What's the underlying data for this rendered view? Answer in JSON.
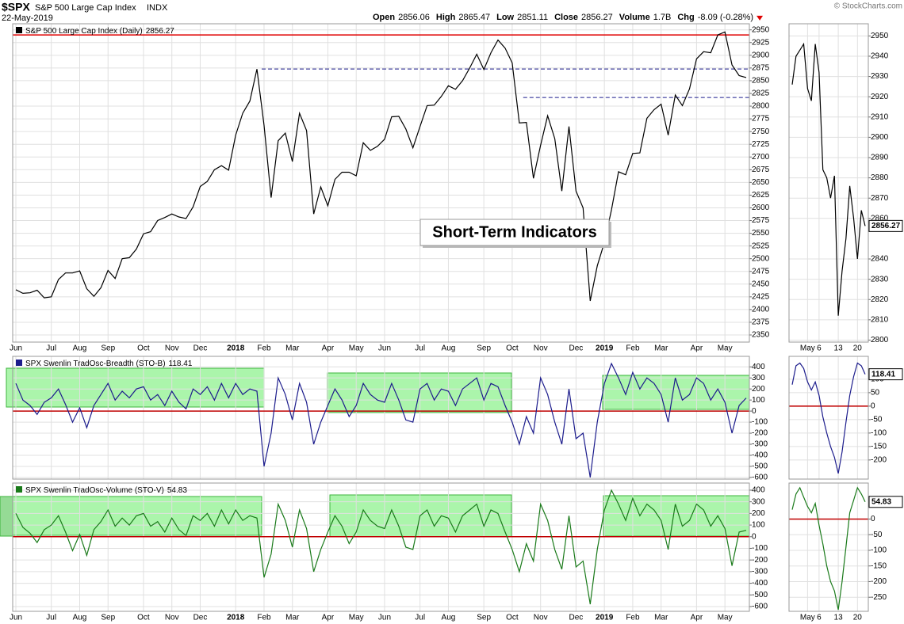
{
  "header": {
    "symbol": "$SPX",
    "name": "S&P 500 Large Cap Index",
    "exchange": "INDX",
    "date": "22-May-2019",
    "credit": "© StockCharts.com",
    "quote": [
      {
        "label": "Open",
        "value": 2856.06
      },
      {
        "label": "High",
        "value": 2865.47
      },
      {
        "label": "Low",
        "value": 2851.11
      },
      {
        "label": "Close",
        "value": 2856.27
      },
      {
        "label": "Volume",
        "value": "1.7B"
      },
      {
        "label": "Chg",
        "value": "-8.09 (-0.28%)"
      }
    ]
  },
  "chart_data": [
    {
      "type": "line",
      "annotation": "Short-Term Indicators",
      "grid": true,
      "categories": [
        "Jun",
        null,
        null,
        null,
        null,
        "Jul",
        null,
        null,
        null,
        "Aug",
        null,
        null,
        null,
        "Sep",
        null,
        null,
        null,
        null,
        "Oct",
        null,
        null,
        null,
        "Nov",
        null,
        null,
        null,
        "Dec",
        null,
        null,
        null,
        null,
        "2018",
        null,
        null,
        null,
        "Feb",
        null,
        null,
        null,
        "Mar",
        null,
        null,
        null,
        null,
        "Apr",
        null,
        null,
        null,
        "May",
        null,
        null,
        null,
        "Jun",
        null,
        null,
        null,
        null,
        "Jul",
        null,
        null,
        null,
        "Aug",
        null,
        null,
        null,
        null,
        "Sep",
        null,
        null,
        null,
        "Oct",
        null,
        null,
        null,
        "Nov",
        null,
        null,
        null,
        null,
        "Dec",
        null,
        null,
        null,
        "2019",
        null,
        null,
        null,
        "Feb",
        null,
        null,
        null,
        "Mar",
        null,
        null,
        null,
        null,
        "Apr",
        null,
        null,
        null,
        "May",
        null,
        null,
        null
      ],
      "series": [
        {
          "name": "S&P 500 Large Cap Index (Daily)",
          "color": "#000000",
          "values": [
            2439,
            2432,
            2433,
            2438,
            2423,
            2425,
            2459,
            2472,
            2472,
            2476,
            2441,
            2426,
            2443,
            2477,
            2461,
            2500,
            2502,
            2519,
            2549,
            2553,
            2575,
            2581,
            2588,
            2582,
            2579,
            2602,
            2642,
            2652,
            2675,
            2683,
            2674,
            2743,
            2786,
            2810,
            2873,
            2762,
            2620,
            2732,
            2747,
            2691,
            2786,
            2752,
            2588,
            2641,
            2604,
            2656,
            2670,
            2670,
            2663,
            2728,
            2713,
            2721,
            2735,
            2779,
            2780,
            2755,
            2718,
            2760,
            2801,
            2802,
            2819,
            2840,
            2833,
            2850,
            2875,
            2902,
            2872,
            2905,
            2930,
            2914,
            2885,
            2767,
            2768,
            2658,
            2723,
            2781,
            2736,
            2633,
            2760,
            2633,
            2600,
            2417,
            2486,
            2532,
            2596,
            2671,
            2665,
            2707,
            2708,
            2776,
            2793,
            2804,
            2743,
            2822,
            2801,
            2834,
            2893,
            2907,
            2905,
            2940,
            2946,
            2881,
            2860,
            2856.27
          ]
        }
      ],
      "ylim": [
        2336,
        2962
      ],
      "yticks": [
        2350,
        2375,
        2400,
        2425,
        2450,
        2475,
        2500,
        2525,
        2550,
        2575,
        2600,
        2625,
        2650,
        2675,
        2700,
        2725,
        2750,
        2775,
        2800,
        2825,
        2850,
        2875,
        2900,
        2925,
        2950
      ],
      "reference_lines": [
        {
          "value": 2940,
          "color": "#e00000",
          "style": "solid"
        },
        {
          "value": 2873,
          "color": "#1c1c8c",
          "style": "dashed"
        },
        {
          "value": 2817,
          "color": "#1c1c8c",
          "style": "dashed"
        }
      ]
    },
    {
      "type": "line",
      "grid": true,
      "series": [
        {
          "name": "SPX Swenlin TradOsc-Breadth (STO-B)",
          "color": "#1c1c8c",
          "values": [
            250,
            100,
            50,
            -30,
            80,
            120,
            200,
            60,
            -100,
            30,
            -150,
            50,
            150,
            250,
            100,
            180,
            120,
            200,
            220,
            100,
            150,
            50,
            180,
            80,
            20,
            200,
            150,
            220,
            100,
            250,
            120,
            250,
            150,
            200,
            180,
            -500,
            -200,
            300,
            150,
            -80,
            250,
            80,
            -300,
            -100,
            50,
            200,
            100,
            -50,
            50,
            250,
            150,
            100,
            80,
            250,
            100,
            -80,
            -100,
            200,
            250,
            100,
            200,
            180,
            50,
            200,
            250,
            300,
            100,
            250,
            220,
            50,
            -100,
            -300,
            -50,
            -200,
            300,
            150,
            -100,
            -300,
            200,
            -250,
            -200,
            -600,
            -100,
            250,
            430,
            300,
            150,
            350,
            200,
            300,
            250,
            150,
            -100,
            300,
            100,
            150,
            300,
            250,
            100,
            200,
            80,
            -200,
            50,
            118.41
          ]
        }
      ],
      "ylim": [
        -615,
        495
      ],
      "yticks": [
        400,
        300,
        200,
        100,
        0,
        -100,
        -200,
        -300,
        -400,
        -500,
        -600
      ],
      "reference_lines": [
        {
          "value": 0,
          "color": "#c00000",
          "style": "solid"
        }
      ]
    },
    {
      "type": "line",
      "grid": true,
      "categories": [
        "Jun",
        null,
        null,
        null,
        null,
        "Jul",
        null,
        null,
        null,
        "Aug",
        null,
        null,
        null,
        "Sep",
        null,
        null,
        null,
        null,
        "Oct",
        null,
        null,
        null,
        "Nov",
        null,
        null,
        null,
        "Dec",
        null,
        null,
        null,
        null,
        "2018",
        null,
        null,
        null,
        "Feb",
        null,
        null,
        null,
        "Mar",
        null,
        null,
        null,
        null,
        "Apr",
        null,
        null,
        null,
        "May",
        null,
        null,
        null,
        "Jun",
        null,
        null,
        null,
        null,
        "Jul",
        null,
        null,
        null,
        "Aug",
        null,
        null,
        null,
        null,
        "Sep",
        null,
        null,
        null,
        "Oct",
        null,
        null,
        null,
        "Nov",
        null,
        null,
        null,
        null,
        "Dec",
        null,
        null,
        null,
        "2019",
        null,
        null,
        null,
        "Feb",
        null,
        null,
        null,
        "Mar",
        null,
        null,
        null,
        null,
        "Apr",
        null,
        null,
        null,
        "May",
        null,
        null,
        null
      ],
      "series": [
        {
          "name": "SPX Swenlin TradOsc-Volume (STO-V)",
          "color": "#1a7a1a",
          "values": [
            200,
            80,
            30,
            -50,
            60,
            100,
            180,
            40,
            -120,
            20,
            -160,
            60,
            130,
            230,
            90,
            160,
            100,
            180,
            200,
            90,
            130,
            40,
            160,
            60,
            10,
            180,
            140,
            200,
            90,
            230,
            110,
            230,
            140,
            180,
            160,
            -350,
            -150,
            280,
            140,
            -90,
            230,
            70,
            -300,
            -110,
            40,
            180,
            90,
            -60,
            40,
            230,
            140,
            90,
            70,
            230,
            90,
            -90,
            -110,
            180,
            230,
            90,
            180,
            160,
            40,
            180,
            230,
            280,
            90,
            230,
            200,
            40,
            -110,
            -300,
            -60,
            -210,
            280,
            140,
            -110,
            -280,
            180,
            -260,
            -210,
            -580,
            -110,
            230,
            400,
            280,
            140,
            330,
            180,
            280,
            230,
            140,
            -110,
            280,
            90,
            140,
            280,
            230,
            90,
            180,
            70,
            -250,
            40,
            54.83
          ]
        }
      ],
      "ylim": [
        -641,
        461
      ],
      "yticks": [
        400,
        300,
        200,
        100,
        0,
        -100,
        -200,
        -300,
        -400,
        -500,
        -600
      ],
      "reference_lines": [
        {
          "value": 0,
          "color": "#c00000",
          "style": "solid"
        }
      ]
    },
    {
      "type": "line",
      "grid": true,
      "categories": [
        null,
        null,
        null,
        null,
        "May",
        null,
        null,
        "6",
        null,
        null,
        null,
        null,
        "13",
        null,
        null,
        null,
        null,
        "20",
        null,
        null
      ],
      "series": [
        {
          "color": "#000000",
          "values": [
            2926,
            2940,
            2943,
            2946,
            2924,
            2918,
            2946,
            2932,
            2884,
            2880,
            2870,
            2881,
            2812,
            2834,
            2850,
            2876,
            2860,
            2840,
            2864,
            2856.27
          ]
        }
      ],
      "ylim": [
        2799,
        2956
      ],
      "yticks": [
        2800,
        2810,
        2820,
        2830,
        2840,
        2860,
        2870,
        2880,
        2890,
        2900,
        2910,
        2920,
        2930,
        2940,
        2950
      ]
    },
    {
      "type": "line",
      "grid": true,
      "series": [
        {
          "color": "#1c1c8c",
          "values": [
            80,
            150,
            160,
            140,
            90,
            60,
            90,
            40,
            -40,
            -100,
            -150,
            -190,
            -250,
            -170,
            -60,
            40,
            110,
            160,
            150,
            118.41
          ]
        }
      ],
      "ylim": [
        -271,
        185
      ],
      "yticks": [
        100,
        50,
        0,
        -50,
        -100,
        -150,
        -200
      ],
      "reference_lines": [
        {
          "value": 0,
          "color": "#c00000",
          "style": "solid"
        }
      ]
    },
    {
      "type": "line",
      "grid": true,
      "categories": [
        null,
        null,
        null,
        null,
        "May",
        null,
        null,
        "6",
        null,
        null,
        null,
        null,
        "13",
        null,
        null,
        null,
        null,
        "20",
        null,
        null
      ],
      "series": [
        {
          "color": "#1a7a1a",
          "values": [
            30,
            80,
            100,
            70,
            40,
            20,
            50,
            -20,
            -80,
            -150,
            -200,
            -230,
            -290,
            -200,
            -90,
            20,
            60,
            100,
            80,
            54.83
          ]
        }
      ],
      "ylim": [
        -295,
        115
      ],
      "yticks": [
        0,
        -50,
        -100,
        -150,
        -200,
        -250
      ],
      "reference_lines": [
        {
          "value": 0,
          "color": "#c00000",
          "style": "solid"
        }
      ]
    }
  ]
}
